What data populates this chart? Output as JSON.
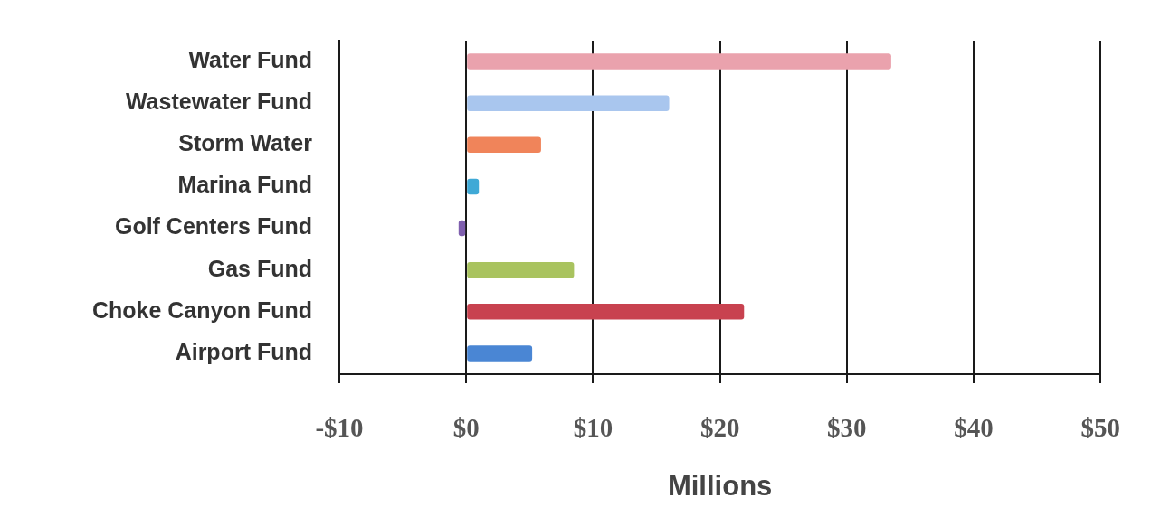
{
  "chart_data": {
    "type": "bar",
    "orientation": "horizontal",
    "xlabel": "Millions",
    "categories": [
      "Water Fund",
      "Wastewater Fund",
      "Storm Water",
      "Marina Fund",
      "Golf Centers Fund",
      "Gas Fund",
      "Choke Canyon Fund",
      "Airport Fund"
    ],
    "values": [
      33.5,
      16,
      5.9,
      1,
      -0.6,
      8.5,
      21.9,
      5.2
    ],
    "colors": [
      "#eaa2ad",
      "#a9c6ee",
      "#f0845a",
      "#3fa9d6",
      "#7f5fae",
      "#a9c35f",
      "#c8424f",
      "#4a86d4"
    ],
    "xlim": [
      -10,
      50
    ],
    "xticks": [
      {
        "value": -10,
        "label": "-$10"
      },
      {
        "value": 0,
        "label": "$0"
      },
      {
        "value": 10,
        "label": "$10"
      },
      {
        "value": 20,
        "label": "$20"
      },
      {
        "value": 30,
        "label": "$30"
      },
      {
        "value": 40,
        "label": "$40"
      },
      {
        "value": 50,
        "label": "$50"
      }
    ],
    "grid": "x"
  }
}
